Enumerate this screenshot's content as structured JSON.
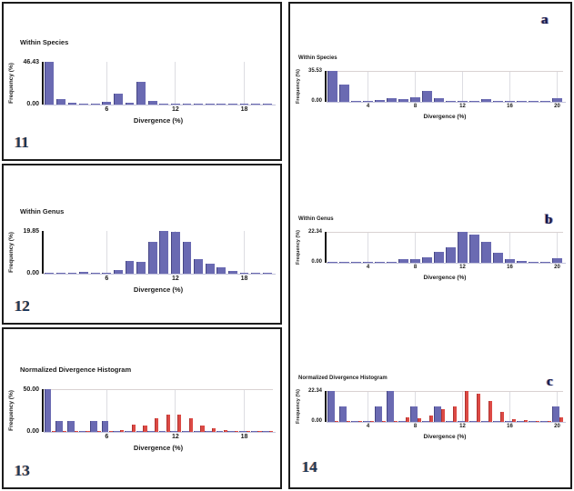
{
  "colors": {
    "bar_blue": "#6a6ab2",
    "bar_red": "#dc4a45",
    "gridline": "#dddde2",
    "figure_number_navy": "#17365d",
    "border_black": "#1c1c1c"
  },
  "panels": {
    "left": [
      {
        "number": "11"
      },
      {
        "number": "12"
      },
      {
        "number": "13"
      }
    ],
    "right": {
      "number": "14",
      "letters": [
        "a",
        "b",
        "c"
      ]
    }
  },
  "chart_data": [
    {
      "type": "bar",
      "title": "Within Species",
      "xlabel": "Divergence (%)",
      "ylabel": "Frequency (%)",
      "ymax_label": "46.43",
      "ymin_label": "0.00",
      "ylim": [
        0,
        46.43
      ],
      "xlim": [
        0.5,
        20.5
      ],
      "xticks": [
        6,
        12,
        18
      ],
      "top_gridline": false,
      "grid": "vertical",
      "x": [
        1,
        2,
        3,
        4,
        5,
        6,
        7,
        8,
        9,
        10,
        11,
        12,
        13,
        14,
        15,
        16,
        17,
        18,
        19,
        20
      ],
      "series": [
        {
          "name": "within-species",
          "color": "bar_blue",
          "values": [
            46.43,
            6.0,
            2.0,
            0.4,
            0.4,
            2.5,
            12.3,
            1.8,
            24.5,
            4.2,
            0.4,
            0.4,
            0.4,
            0.4,
            0.4,
            0.4,
            0.4,
            0.4,
            0.4,
            0.4
          ]
        }
      ]
    },
    {
      "type": "bar",
      "title": "Within Genus",
      "xlabel": "Divergence (%)",
      "ylabel": "Frequency (%)",
      "ymax_label": "19.85",
      "ymin_label": "0.00",
      "ylim": [
        0,
        19.85
      ],
      "xlim": [
        0.5,
        20.5
      ],
      "xticks": [
        6,
        12,
        18
      ],
      "top_gridline": false,
      "grid": "vertical",
      "x": [
        1,
        2,
        3,
        4,
        5,
        6,
        7,
        8,
        9,
        10,
        11,
        12,
        13,
        14,
        15,
        16,
        17,
        18,
        19,
        20
      ],
      "series": [
        {
          "name": "within-genus",
          "color": "bar_blue",
          "values": [
            0.3,
            0.3,
            0.3,
            1.0,
            0.4,
            0.6,
            1.7,
            6.1,
            5.7,
            14.9,
            19.85,
            19.4,
            14.6,
            6.7,
            4.7,
            2.8,
            1.1,
            0.5,
            0.3,
            0.3
          ]
        }
      ]
    },
    {
      "type": "bar",
      "title": "Normalized Divergence Histogram",
      "xlabel": "Divergence (%)",
      "ylabel": "Frequency (%)",
      "ymax_label": "50.00",
      "ymin_label": "0.00",
      "ylim": [
        0,
        50
      ],
      "xlim": [
        0.5,
        20.5
      ],
      "xticks": [
        6,
        12,
        18
      ],
      "top_gridline": true,
      "grid": "vertical",
      "x": [
        1,
        2,
        3,
        4,
        5,
        6,
        7,
        8,
        9,
        10,
        11,
        12,
        13,
        14,
        15,
        16,
        17,
        18,
        19,
        20
      ],
      "series": [
        {
          "name": "within-species-normalized",
          "color": "bar_blue",
          "values": [
            50.0,
            12.5,
            12.5,
            0.4,
            12.5,
            12.5,
            0.4,
            0.4,
            0.4,
            0.4,
            0.4,
            0.4,
            0.4,
            0.4,
            0.4,
            0.4,
            0.4,
            0.4,
            0.4,
            0.4
          ]
        },
        {
          "name": "within-genus-normalized",
          "color": "bar_red",
          "values": [
            0.4,
            0.4,
            0.4,
            0.4,
            0.4,
            0.4,
            1.8,
            9.0,
            7.0,
            16.0,
            20.0,
            20.0,
            15.5,
            7.0,
            4.3,
            2.0,
            0.4,
            0.4,
            0.4,
            0.4
          ]
        }
      ]
    },
    {
      "type": "bar",
      "title": "Within Species",
      "xlabel": "Divergence (%)",
      "ylabel": "Frequency (%)",
      "ymax_label": "35.53",
      "ymin_label": "0.00",
      "ylim": [
        0,
        35.53
      ],
      "xlim": [
        0.5,
        20.5
      ],
      "xticks": [
        4,
        8,
        12,
        16,
        20
      ],
      "top_gridline": true,
      "grid": "vertical",
      "x": [
        1,
        2,
        3,
        4,
        5,
        6,
        7,
        8,
        9,
        10,
        11,
        12,
        13,
        14,
        15,
        16,
        17,
        18,
        19,
        20
      ],
      "series": [
        {
          "name": "within-species",
          "color": "bar_blue",
          "values": [
            35.53,
            20.0,
            0.4,
            0.4,
            2.1,
            4.6,
            3.2,
            5.3,
            12.4,
            4.3,
            0.4,
            1.4,
            0.4,
            2.8,
            1.4,
            0.4,
            0.4,
            0.4,
            0.4,
            4.3
          ]
        }
      ]
    },
    {
      "type": "bar",
      "title": "Within Genus",
      "xlabel": "Divergence (%)",
      "ylabel": "Frequency (%)",
      "ymax_label": "22.34",
      "ymin_label": "0.00",
      "ylim": [
        0,
        22.34
      ],
      "xlim": [
        0.5,
        20.5
      ],
      "xticks": [
        4,
        8,
        12,
        16,
        20
      ],
      "top_gridline": true,
      "grid": "vertical",
      "x": [
        1,
        2,
        3,
        4,
        5,
        6,
        7,
        8,
        9,
        10,
        11,
        12,
        13,
        14,
        15,
        16,
        17,
        18,
        19,
        20
      ],
      "series": [
        {
          "name": "within-genus",
          "color": "bar_blue",
          "values": [
            0.3,
            0.3,
            0.3,
            0.3,
            0.3,
            0.3,
            2.8,
            2.4,
            4.2,
            8.2,
            11.0,
            22.34,
            20.7,
            15.3,
            7.5,
            2.4,
            1.2,
            0.3,
            0.3,
            3.3
          ]
        }
      ]
    },
    {
      "type": "bar",
      "title": "Normalized Divergence Histogram",
      "xlabel": "Divergence (%)",
      "ylabel": "Frequency (%)",
      "ymax_label": "22.34",
      "ymin_label": "0.00",
      "ylim": [
        0,
        22.34
      ],
      "xlim": [
        0.5,
        20.5
      ],
      "xticks": [
        4,
        8,
        12,
        16,
        20
      ],
      "top_gridline": true,
      "grid": "vertical",
      "x": [
        1,
        2,
        3,
        4,
        5,
        6,
        7,
        8,
        9,
        10,
        11,
        12,
        13,
        14,
        15,
        16,
        17,
        18,
        19,
        20
      ],
      "series": [
        {
          "name": "within-species-normalized",
          "color": "bar_blue",
          "values": [
            22.34,
            11.2,
            0.4,
            0.4,
            11.2,
            22.3,
            0.4,
            11.2,
            0.4,
            11.2,
            0.4,
            0.4,
            0.4,
            0.4,
            0.4,
            0.4,
            0.4,
            0.4,
            0.4,
            11.2
          ]
        },
        {
          "name": "within-genus-normalized",
          "color": "bar_red",
          "values": [
            0.4,
            0.4,
            0.4,
            0.4,
            0.4,
            0.4,
            3.0,
            2.6,
            4.3,
            9.0,
            11.2,
            22.3,
            20.4,
            15.0,
            7.0,
            2.1,
            1.5,
            0.4,
            0.4,
            3.0
          ]
        }
      ]
    }
  ]
}
